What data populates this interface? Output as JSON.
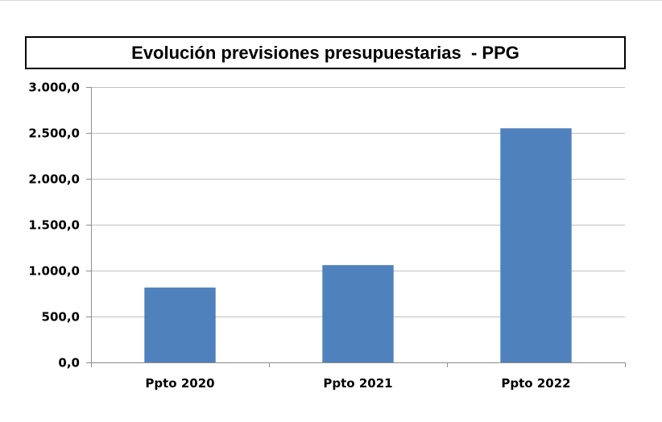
{
  "title": "Evolución previsiones presupuestarias  - PPG",
  "chart_data": {
    "type": "bar",
    "title": "Evolución previsiones presupuestarias  - PPG",
    "categories": [
      "Ppto 2020",
      "Ppto 2021",
      "Ppto 2022"
    ],
    "values": [
      815,
      1060,
      2550
    ],
    "ylim": [
      0,
      3000
    ],
    "yticks": [
      0,
      500,
      1000,
      1500,
      2000,
      2500,
      3000
    ],
    "ytick_labels": [
      "0,0",
      "500,0",
      "1.000,0",
      "1.500,0",
      "2.000,0",
      "2.500,0",
      "3.000,0"
    ],
    "xlabel": "",
    "ylabel": "",
    "grid": true,
    "legend": "none",
    "bar_color": "#4f81bd",
    "grid_color": "#c0c0c0"
  }
}
